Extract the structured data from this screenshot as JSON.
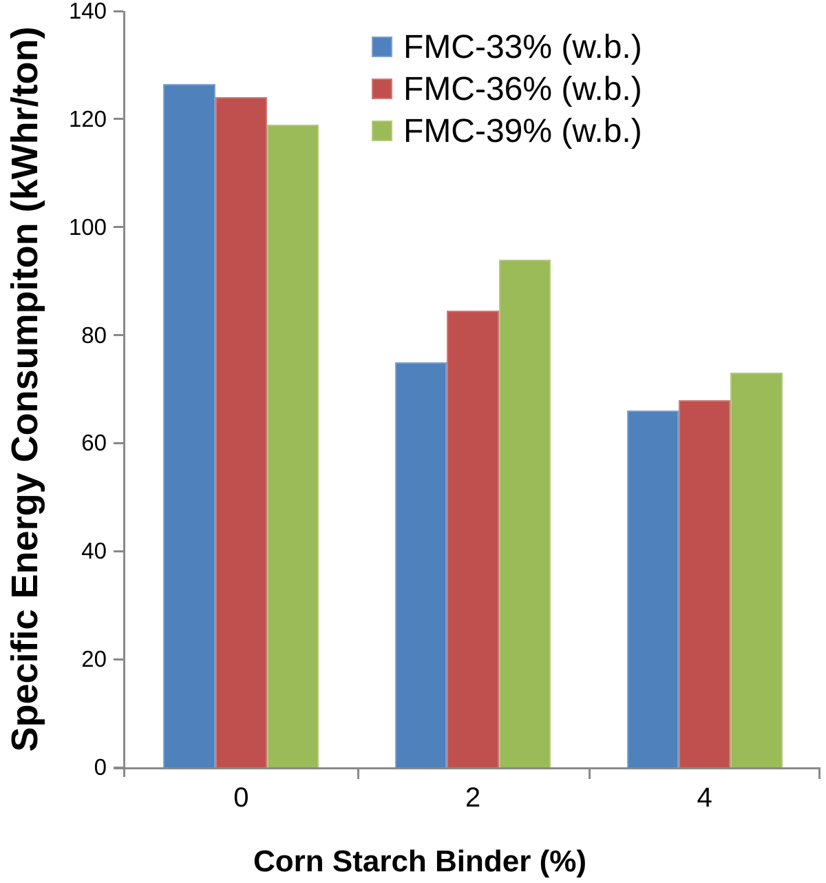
{
  "chart_data": {
    "type": "bar",
    "title": "",
    "xlabel": "Corn Starch Binder (%)",
    "ylabel": "Specific Energy Consumpiton (kWhr/ton)",
    "categories": [
      "0",
      "2",
      "4"
    ],
    "series": [
      {
        "name": "FMC-33% (w.b.)",
        "color": "#4F81BD",
        "border_color": "#7CA1D2",
        "values": [
          126.5,
          75,
          66
        ]
      },
      {
        "name": "FMC-36% (w.b.)",
        "color": "#C0504D",
        "border_color": "#CF7A77",
        "values": [
          124,
          84.5,
          68
        ]
      },
      {
        "name": "FMC-39% (w.b.)",
        "color": "#9BBB59",
        "border_color": "#B2CA7F",
        "values": [
          119,
          94,
          73
        ]
      }
    ],
    "ylim": [
      0,
      140
    ],
    "ytick_step": 20,
    "yticks": [
      0,
      20,
      40,
      60,
      80,
      100,
      120,
      140
    ],
    "grid": false,
    "legend_position": "top-right-inside",
    "axis_color": "#898989",
    "text_color": "#000000",
    "background": "#FFFFFF"
  }
}
